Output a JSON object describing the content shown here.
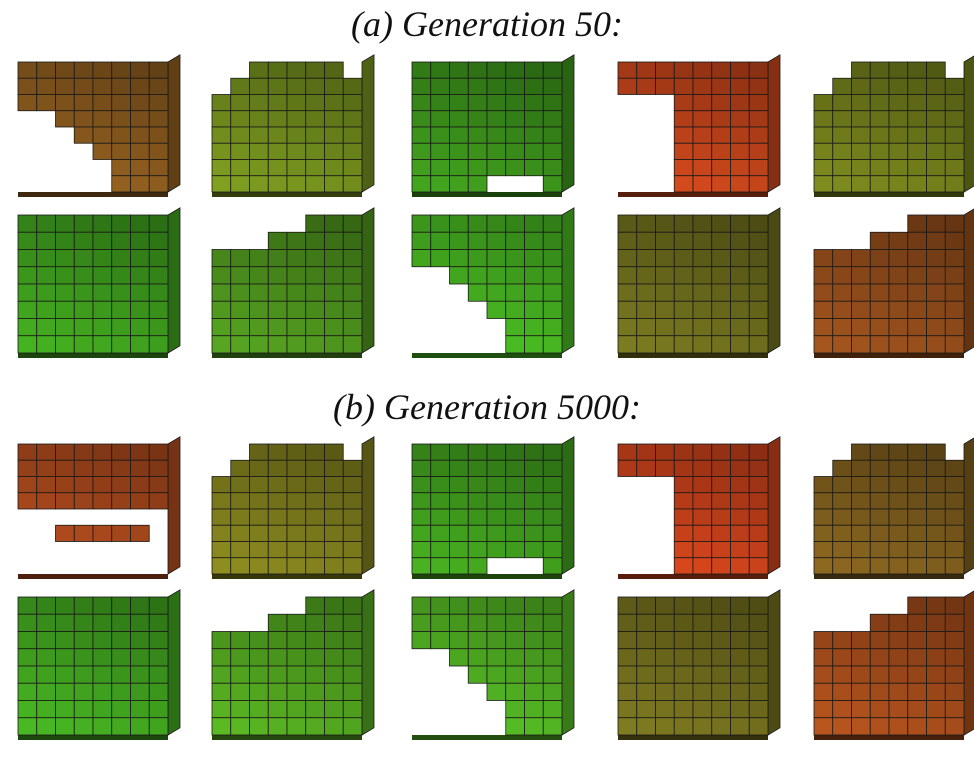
{
  "headings": {
    "a": "(a) Generation 50:",
    "b": "(b) Generation 5000:"
  },
  "generations": [
    {
      "id": "gen50",
      "rows": [
        [
          {
            "fill": "#8a5a1e",
            "shape": "staircase"
          },
          {
            "fill": "#6f8a1c",
            "shape": "dome"
          },
          {
            "fill": "#3a8f1a",
            "shape": "notched"
          },
          {
            "fill": "#c0431a",
            "shape": "column"
          },
          {
            "fill": "#6e7a1a",
            "shape": "dome"
          }
        ],
        [
          {
            "fill": "#3c9a1c",
            "shape": "cube"
          },
          {
            "fill": "#4b8f1c",
            "shape": "stepped"
          },
          {
            "fill": "#45b020",
            "shape": "staircase"
          },
          {
            "fill": "#6a6a1c",
            "shape": "cube"
          },
          {
            "fill": "#8e4a1a",
            "shape": "stepped"
          }
        ]
      ]
    },
    {
      "id": "gen5000",
      "rows": [
        [
          {
            "fill": "#a8481c",
            "shape": "shelf"
          },
          {
            "fill": "#7b7a1c",
            "shape": "dome"
          },
          {
            "fill": "#3e9a1c",
            "shape": "notched"
          },
          {
            "fill": "#c4401a",
            "shape": "column"
          },
          {
            "fill": "#7a5a1c",
            "shape": "dome"
          }
        ],
        [
          {
            "fill": "#3fa01e",
            "shape": "cube"
          },
          {
            "fill": "#4fa01e",
            "shape": "stepped"
          },
          {
            "fill": "#50b022",
            "shape": "staircase"
          },
          {
            "fill": "#6e6a1c",
            "shape": "cube"
          },
          {
            "fill": "#a04a1a",
            "shape": "stepped"
          }
        ]
      ]
    }
  ]
}
